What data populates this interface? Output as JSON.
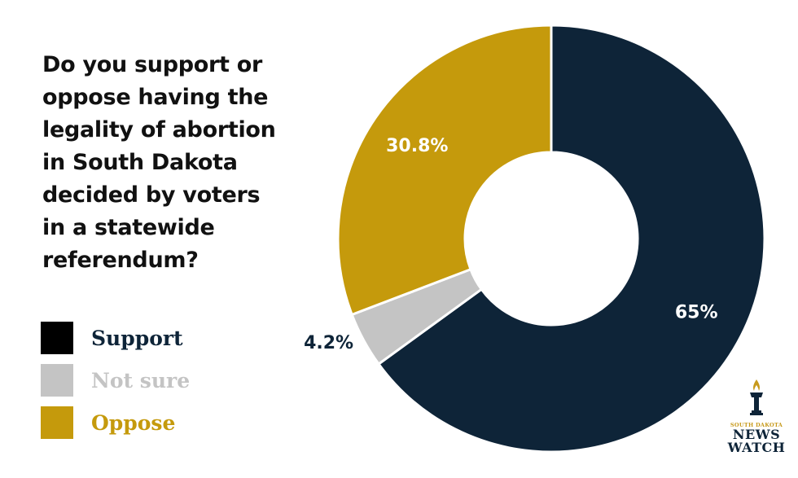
{
  "question": "Do you support or\noppose having the\nlegality of abortion\nin South Dakota\ndecided by voters\nin a statewide\nreferendum?",
  "chart_data": {
    "type": "pie",
    "title": "Do you support or oppose having the legality of abortion in South Dakota decided by voters in a statewide referendum?",
    "categories": [
      "Support",
      "Not sure",
      "Oppose"
    ],
    "values": [
      65,
      4.2,
      30.8
    ],
    "data_labels": [
      "65%",
      "4.2%",
      "30.8%"
    ],
    "colors": [
      "#0e2438",
      "#c4c4c4",
      "#c59a0c"
    ],
    "legend_text_colors": [
      "#0e2438",
      "#c4c4c4",
      "#c59a0c"
    ],
    "label_colors": [
      "#ffffff",
      "#0e2438",
      "#ffffff"
    ],
    "donut": true,
    "legend_position": "bottom-left"
  },
  "legend": [
    {
      "label": "Support"
    },
    {
      "label": "Not sure"
    },
    {
      "label": "Oppose"
    }
  ],
  "logo": {
    "line1": "SOUTH DAKOTA",
    "line2": "NEWS",
    "line3": "WATCH",
    "icon": "torch-icon"
  }
}
